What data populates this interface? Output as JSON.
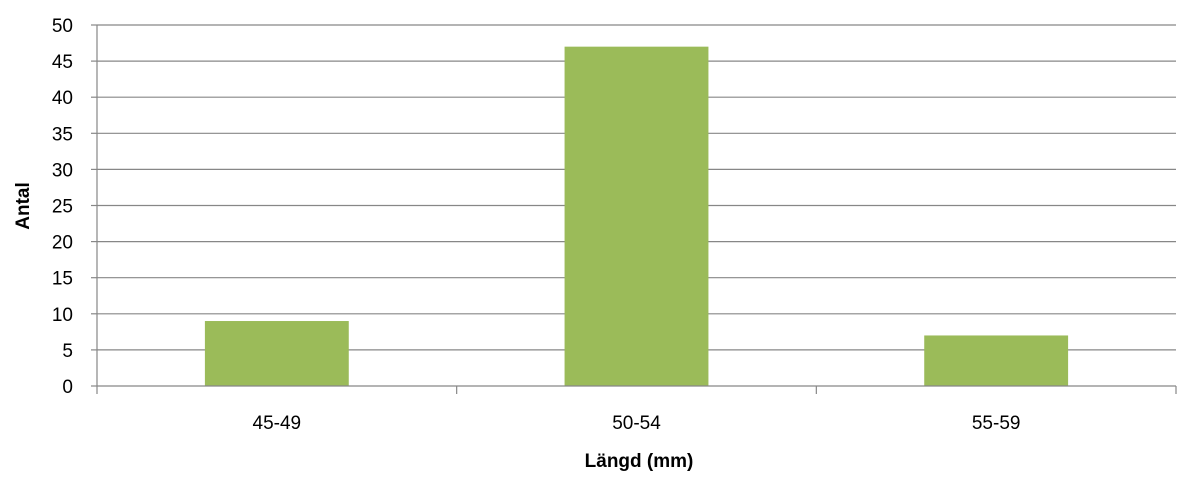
{
  "chart_data": {
    "type": "bar",
    "title": "",
    "xlabel": "Längd (mm)",
    "ylabel": "Antal",
    "categories": [
      "45-49",
      "50-54",
      "55-59"
    ],
    "values": [
      9,
      47,
      7
    ],
    "ylim": [
      0,
      50
    ],
    "yticks": [
      "0",
      "5",
      "10",
      "15",
      "20",
      "25",
      "30",
      "35",
      "40",
      "45",
      "50"
    ],
    "grid": true,
    "legend": "none",
    "colors": {
      "bar": "#9BBB59",
      "gridline": "#878787",
      "axis": "#878787"
    }
  }
}
